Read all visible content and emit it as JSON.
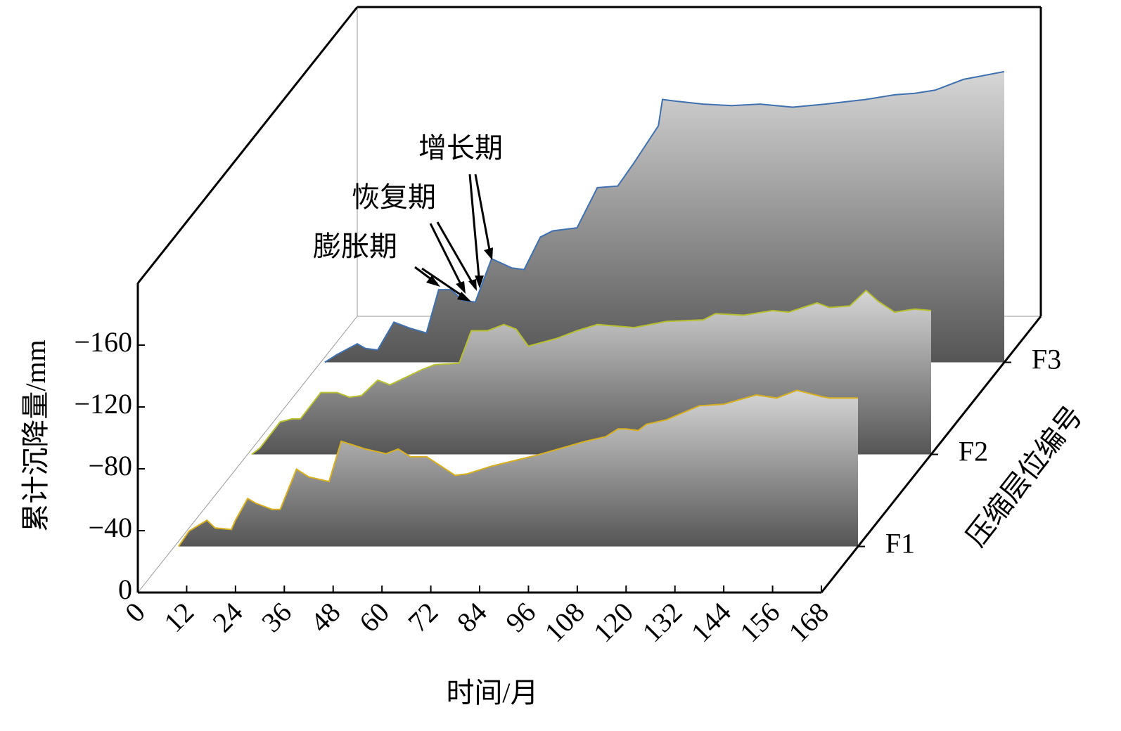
{
  "chart_data": {
    "type": "waterfall3d",
    "x_label": "时间/月",
    "y_label": "累计沉降量/mm",
    "z_label": "压缩层位编号",
    "xlim": [
      0,
      168
    ],
    "xticks": [
      0,
      12,
      24,
      36,
      48,
      60,
      72,
      84,
      96,
      108,
      120,
      132,
      144,
      156,
      168
    ],
    "ylim": [
      0,
      -200
    ],
    "yticks": [
      0,
      {
        "value": -40,
        "label": "−40"
      },
      {
        "value": -80,
        "label": "−80"
      },
      {
        "value": -120,
        "label": "−120"
      },
      {
        "value": -160,
        "label": "−160"
      }
    ],
    "zlim": [
      0,
      6
    ],
    "zticks": [
      1,
      3,
      5
    ],
    "annotations": [
      "膨胀期",
      "恢复期",
      "增长期"
    ],
    "series": [
      {
        "name": "F1",
        "color": "#d8b020",
        "x": [
          1,
          3.6,
          8,
          10,
          14,
          15,
          18,
          20,
          24,
          26,
          30,
          33,
          38,
          41,
          47,
          52,
          55,
          58,
          62,
          69,
          72,
          78,
          89,
          101,
          106,
          109,
          111,
          114,
          116,
          121,
          129,
          135,
          143,
          148,
          153,
          159,
          161,
          168
        ],
        "values": [
          0,
          -10,
          -17,
          -12,
          -11,
          -17,
          -31,
          -28,
          -24,
          -24,
          -50,
          -45,
          -42,
          -68,
          -63,
          -60,
          -63,
          -58,
          -58,
          -46,
          -47,
          -52,
          -59,
          -68,
          -71,
          -76,
          -76,
          -75,
          -79,
          -82,
          -91,
          -92,
          -98,
          -96,
          -101,
          -97,
          -96,
          -96
        ]
      },
      {
        "name": "F2",
        "color": "#b8c030",
        "x": [
          1,
          3,
          8,
          11,
          13,
          18,
          22,
          25,
          28,
          32,
          35,
          39,
          43,
          46,
          52,
          55,
          59,
          63,
          66,
          69,
          76,
          81,
          86,
          95,
          103,
          112,
          115,
          122,
          129,
          133,
          140,
          143,
          148,
          152,
          155,
          159,
          164,
          168
        ],
        "values": [
          0,
          -4,
          -21,
          -23,
          -23,
          -40,
          -40,
          -37,
          -38,
          -48,
          -45,
          -50,
          -55,
          -58,
          -59,
          -80,
          -80,
          -84,
          -81,
          -70,
          -75,
          -80,
          -84,
          -82,
          -86,
          -87,
          -91,
          -90,
          -93,
          -92,
          -98,
          -95,
          -96,
          -106,
          -99,
          -92,
          -94,
          -93
        ]
      },
      {
        "name": "F3",
        "color": "#3f70b0",
        "x": [
          1,
          4,
          9,
          11,
          14,
          18,
          22,
          26,
          29,
          32,
          35,
          38,
          42,
          47,
          50,
          54,
          57,
          63,
          68,
          73,
          77,
          83,
          84,
          87,
          94,
          101,
          108,
          116,
          124,
          134,
          141,
          146,
          151,
          158,
          162,
          168
        ],
        "values": [
          0,
          -5,
          -12,
          -9,
          -8,
          -26,
          -22,
          -19,
          -47,
          -47,
          -40,
          -39,
          -67,
          -61,
          -60,
          -81,
          -85,
          -87,
          -113,
          -114,
          -129,
          -153,
          -170,
          -169,
          -167,
          -166,
          -167,
          -165,
          -167,
          -170,
          -173,
          -174,
          -176,
          -183,
          -185,
          -188
        ]
      }
    ]
  }
}
